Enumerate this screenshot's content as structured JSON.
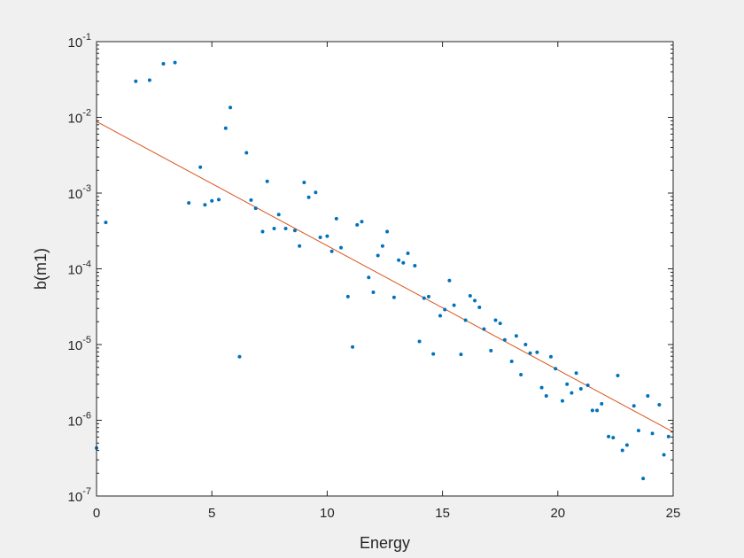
{
  "chart_data": {
    "type": "scatter",
    "xlabel": "Energy",
    "ylabel": "b(m1)",
    "xlim": [
      0,
      25
    ],
    "ylim": [
      1e-07,
      0.1
    ],
    "yscale": "log",
    "grid": false,
    "legend": "none",
    "xticks": [
      0,
      5,
      10,
      15,
      20,
      25
    ],
    "xtick_labels": [
      "0",
      "5",
      "10",
      "15",
      "20",
      "25"
    ],
    "yticks": [
      {
        "base": "10",
        "exp": "-7",
        "value": 1e-07
      },
      {
        "base": "10",
        "exp": "-6",
        "value": 1e-06
      },
      {
        "base": "10",
        "exp": "-5",
        "value": 1e-05
      },
      {
        "base": "10",
        "exp": "-4",
        "value": 0.0001
      },
      {
        "base": "10",
        "exp": "-3",
        "value": 0.001
      },
      {
        "base": "10",
        "exp": "-2",
        "value": 0.01
      },
      {
        "base": "10",
        "exp": "-1",
        "value": 0.1
      }
    ],
    "colors": {
      "points": "#0072bd",
      "fit_line": "#d95319",
      "axes": "#262626",
      "plot_bg": "#ffffff",
      "figure_bg": "#f0f0f0"
    },
    "series": [
      {
        "type": "scatter",
        "points": [
          [
            0.0,
            4.3e-07
          ],
          [
            0.4,
            0.00041
          ],
          [
            1.7,
            0.03
          ],
          [
            2.3,
            0.031
          ],
          [
            2.9,
            0.051
          ],
          [
            3.4,
            0.053
          ],
          [
            4.0,
            0.00074
          ],
          [
            4.5,
            0.0022
          ],
          [
            4.7,
            0.0007
          ],
          [
            5.0,
            0.00079
          ],
          [
            5.3,
            0.00082
          ],
          [
            5.6,
            0.0072
          ],
          [
            5.8,
            0.0135
          ],
          [
            6.2,
            6.9e-06
          ],
          [
            6.5,
            0.0034
          ],
          [
            6.7,
            0.00081
          ],
          [
            6.9,
            0.00063
          ],
          [
            7.2,
            0.00031
          ],
          [
            7.4,
            0.00143
          ],
          [
            7.7,
            0.00034
          ],
          [
            7.9,
            0.00052
          ],
          [
            8.2,
            0.00034
          ],
          [
            8.6,
            0.00032
          ],
          [
            8.8,
            0.0002
          ],
          [
            9.0,
            0.00138
          ],
          [
            9.2,
            0.00088
          ],
          [
            9.5,
            0.00102
          ],
          [
            9.7,
            0.00026
          ],
          [
            10.0,
            0.00027
          ],
          [
            10.2,
            0.00017
          ],
          [
            10.4,
            0.00046
          ],
          [
            10.6,
            0.00019
          ],
          [
            10.9,
            4.3e-05
          ],
          [
            11.1,
            9.3e-06
          ],
          [
            11.3,
            0.00038
          ],
          [
            11.5,
            0.00042
          ],
          [
            11.8,
            7.7e-05
          ],
          [
            12.0,
            4.9e-05
          ],
          [
            12.2,
            0.00015
          ],
          [
            12.4,
            0.0002
          ],
          [
            12.6,
            0.00031
          ],
          [
            12.9,
            4.2e-05
          ],
          [
            13.1,
            0.00013
          ],
          [
            13.3,
            0.00012
          ],
          [
            13.5,
            0.00016
          ],
          [
            13.8,
            0.00011
          ],
          [
            14.0,
            1.1e-05
          ],
          [
            14.2,
            4.1e-05
          ],
          [
            14.4,
            4.3e-05
          ],
          [
            14.6,
            7.5e-06
          ],
          [
            14.9,
            2.4e-05
          ],
          [
            15.1,
            2.9e-05
          ],
          [
            15.3,
            7e-05
          ],
          [
            15.5,
            3.3e-05
          ],
          [
            15.8,
            7.4e-06
          ],
          [
            16.0,
            2.1e-05
          ],
          [
            16.2,
            4.4e-05
          ],
          [
            16.4,
            3.8e-05
          ],
          [
            16.6,
            3.1e-05
          ],
          [
            16.8,
            1.6e-05
          ],
          [
            17.1,
            8.3e-06
          ],
          [
            17.3,
            2.1e-05
          ],
          [
            17.5,
            1.9e-05
          ],
          [
            17.7,
            1.15e-05
          ],
          [
            18.0,
            6e-06
          ],
          [
            18.2,
            1.3e-05
          ],
          [
            18.4,
            4e-06
          ],
          [
            18.6,
            1e-05
          ],
          [
            18.8,
            7.7e-06
          ],
          [
            19.1,
            7.9e-06
          ],
          [
            19.3,
            2.7e-06
          ],
          [
            19.5,
            2.1e-06
          ],
          [
            19.7,
            6.9e-06
          ],
          [
            19.9,
            4.8e-06
          ],
          [
            20.2,
            1.8e-06
          ],
          [
            20.4,
            3e-06
          ],
          [
            20.6,
            2.3e-06
          ],
          [
            20.8,
            4.2e-06
          ],
          [
            21.0,
            2.6e-06
          ],
          [
            21.3,
            2.9e-06
          ],
          [
            21.5,
            1.35e-06
          ],
          [
            21.7,
            1.35e-06
          ],
          [
            21.9,
            1.65e-06
          ],
          [
            22.2,
            6.1e-07
          ],
          [
            22.4,
            5.9e-07
          ],
          [
            22.6,
            3.9e-06
          ],
          [
            22.8,
            4e-07
          ],
          [
            23.0,
            4.7e-07
          ],
          [
            23.3,
            1.55e-06
          ],
          [
            23.5,
            7.3e-07
          ],
          [
            23.7,
            1.7e-07
          ],
          [
            23.9,
            2.1e-06
          ],
          [
            24.1,
            6.7e-07
          ],
          [
            24.4,
            1.6e-06
          ],
          [
            24.6,
            3.5e-07
          ],
          [
            24.8,
            6.1e-07
          ]
        ]
      },
      {
        "type": "line",
        "points": [
          [
            0,
            0.0088
          ],
          [
            25,
            7e-07
          ]
        ]
      }
    ]
  }
}
